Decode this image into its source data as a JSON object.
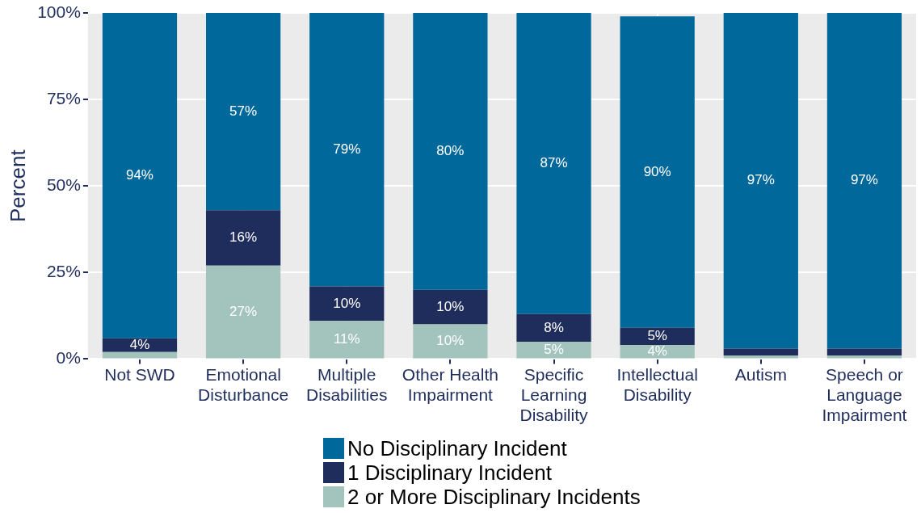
{
  "chart_data": {
    "type": "bar",
    "stacked": true,
    "ylabel": "Percent",
    "categories": [
      "Not SWD",
      "Emotional Disturbance",
      "Multiple Disabilities",
      "Other Health Impairment",
      "Specific Learning Disability",
      "Intellectual Disability",
      "Autism",
      "Speech or Language Impairment"
    ],
    "series": [
      {
        "name": "2 or More Disciplinary Incidents",
        "color": "#a3c4bc",
        "values": [
          2,
          27,
          11,
          10,
          5,
          4,
          1,
          1
        ],
        "value_labels": [
          null,
          "27%",
          "11%",
          "10%",
          "5%",
          "4%",
          null,
          null
        ]
      },
      {
        "name": "1 Disciplinary Incident",
        "color": "#1f2d5c",
        "values": [
          4,
          16,
          10,
          10,
          8,
          5,
          2,
          2
        ],
        "value_labels": [
          "4%",
          "16%",
          "10%",
          "10%",
          "8%",
          "5%",
          null,
          null
        ]
      },
      {
        "name": "No Disciplinary Incident",
        "color": "#00689a",
        "values": [
          94,
          57,
          79,
          80,
          87,
          90,
          97,
          97
        ],
        "value_labels": [
          "94%",
          "57%",
          "79%",
          "80%",
          "87%",
          "90%",
          "97%",
          "97%"
        ]
      }
    ],
    "ylim": [
      0,
      100
    ],
    "yticks": [
      {
        "value": 0,
        "label": "0%"
      },
      {
        "value": 25,
        "label": "25%"
      },
      {
        "value": 50,
        "label": "50%"
      },
      {
        "value": 75,
        "label": "75%"
      },
      {
        "value": 100,
        "label": "100%"
      }
    ],
    "grid": true,
    "legend": "bottom"
  }
}
